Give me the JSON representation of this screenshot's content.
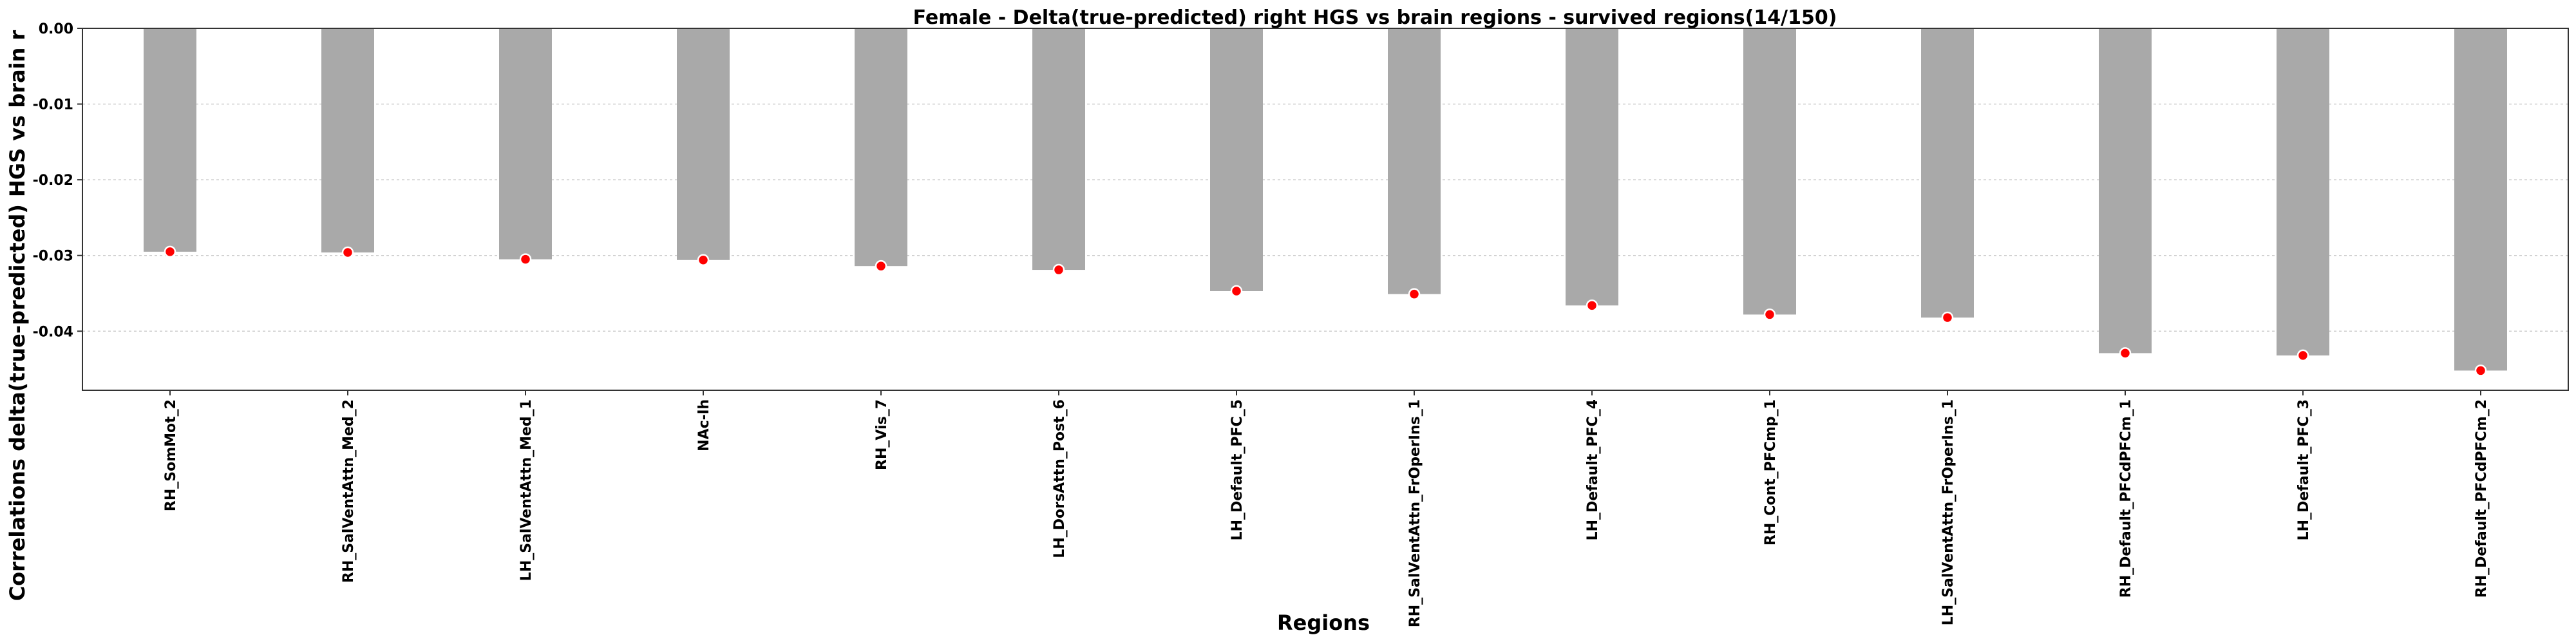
{
  "chart_data": {
    "type": "bar",
    "title": "Female - Delta(true-predicted) right HGS vs brain regions - survived regions(14/150)",
    "xlabel": "Regions",
    "ylabel": "Correlations delta(true-predicted) HGS vs brain r",
    "categories": [
      "RH_SomMot_2",
      "RH_SalVentAttn_Med_2",
      "LH_SalVentAttn_Med_1",
      "NAc-lh",
      "RH_Vis_7",
      "LH_DorsAttn_Post_6",
      "LH_Default_PFC_5",
      "RH_SalVentAttn_FrOperIns_1",
      "LH_Default_PFC_4",
      "RH_Cont_PFCmp_1",
      "LH_SalVentAttn_FrOperIns_1",
      "RH_Default_PFCdPFCm_1",
      "LH_Default_PFC_3",
      "RH_Default_PFCdPFCm_2"
    ],
    "values": [
      -0.0295,
      -0.0296,
      -0.0305,
      -0.0306,
      -0.0314,
      -0.0319,
      -0.0347,
      -0.0351,
      -0.0366,
      -0.0378,
      -0.0382,
      -0.0429,
      -0.0432,
      -0.0452
    ],
    "ylim": [
      -0.0478,
      0.0
    ],
    "yticks": [
      "0.00",
      "-0.01",
      "-0.02",
      "-0.03",
      "-0.04"
    ],
    "ytick_values": [
      0.0,
      -0.01,
      -0.02,
      -0.03,
      -0.04
    ],
    "grid": "horizontal-dashed",
    "bar_color": "#a9a9a9",
    "marker_color": "#ff0000"
  }
}
